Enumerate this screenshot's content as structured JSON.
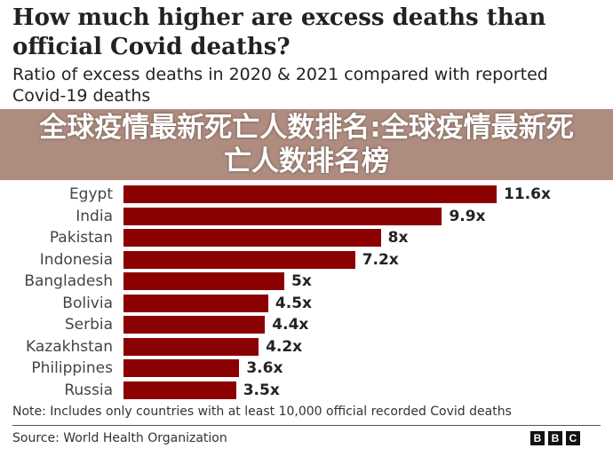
{
  "chart_data": {
    "type": "bar",
    "orientation": "horizontal",
    "title": "How much higher are excess deaths than official Covid deaths?",
    "subtitle": "Ratio of excess deaths in 2020 & 2021 compared with reported Covid-19 deaths",
    "categories": [
      "Egypt",
      "India",
      "Pakistan",
      "Indonesia",
      "Bangladesh",
      "Bolivia",
      "Serbia",
      "Kazakhstan",
      "Philippines",
      "Russia"
    ],
    "values": [
      11.6,
      9.9,
      8,
      7.2,
      5,
      4.5,
      4.4,
      4.2,
      3.6,
      3.5
    ],
    "value_labels": [
      "11.6x",
      "9.9x",
      "8x",
      "7.2x",
      "5x",
      "4.5x",
      "4.4x",
      "4.2x",
      "3.6x",
      "3.5x"
    ],
    "bar_color": "#8b0000",
    "xlim": [
      0,
      11.6
    ],
    "note": "Note: Includes only countries with at least 10,000 official recorded Covid deaths",
    "source": "Source: World Health Organization"
  },
  "logo": [
    "B",
    "B",
    "C"
  ],
  "overlay_text": "全球疫情最新死亡人数排名:全球疫情最新死亡人数排名榜"
}
